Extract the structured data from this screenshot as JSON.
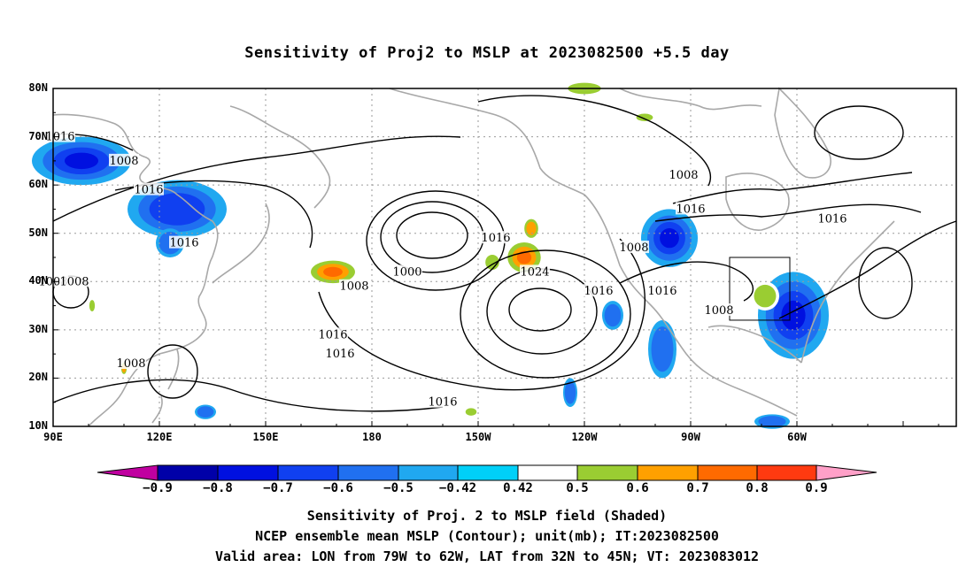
{
  "title": "Sensitivity of Proj2 to MSLP at 2023082500 +5.5 day",
  "map": {
    "lat_ticks": [
      "80N",
      "70N",
      "60N",
      "50N",
      "40N",
      "30N",
      "20N",
      "10N"
    ],
    "lon_ticks": [
      "90E",
      "120E",
      "150E",
      "180",
      "150W",
      "120W",
      "90W",
      "60W"
    ],
    "contour_labels": [
      {
        "text": "1008",
        "lon": 110,
        "lat": 65
      },
      {
        "text": "1016",
        "lon": 117,
        "lat": 59
      },
      {
        "text": "1016",
        "lon": 127,
        "lat": 48
      },
      {
        "text": "1008",
        "lon": 90,
        "lat": 40
      },
      {
        "text": "1008",
        "lon": 96,
        "lat": 40
      },
      {
        "text": "1016",
        "lon": 92,
        "lat": 70
      },
      {
        "text": "1008",
        "lon": 112,
        "lat": 23
      },
      {
        "text": "1000",
        "lon": 190,
        "lat": 42
      },
      {
        "text": "1008",
        "lon": 175,
        "lat": 39
      },
      {
        "text": "1016",
        "lon": 169,
        "lat": 29
      },
      {
        "text": "1016",
        "lon": 171,
        "lat": 25
      },
      {
        "text": "1024",
        "lon": 226,
        "lat": 42
      },
      {
        "text": "1016",
        "lon": 215,
        "lat": 49
      },
      {
        "text": "1016",
        "lon": 244,
        "lat": 38
      },
      {
        "text": "1016",
        "lon": 200,
        "lat": 15
      },
      {
        "text": "1008",
        "lon": 268,
        "lat": 62
      },
      {
        "text": "1016",
        "lon": 270,
        "lat": 55
      },
      {
        "text": "1008",
        "lon": 254,
        "lat": 47
      },
      {
        "text": "1016",
        "lon": 262,
        "lat": 38
      },
      {
        "text": "1008",
        "lon": 278,
        "lat": 34
      },
      {
        "text": "1016",
        "lon": 310,
        "lat": 53
      }
    ],
    "valid_box": {
      "lon_min": -79,
      "lon_max": -62,
      "lat_min": 32,
      "lat_max": 45
    },
    "positive_patches": [
      {
        "lon": 169,
        "lat": 42,
        "rx": 8,
        "ry": 3,
        "level": 0.7
      },
      {
        "lon": 223,
        "lat": 45,
        "rx": 6,
        "ry": 4,
        "level": 0.7
      },
      {
        "lon": 225,
        "lat": 51,
        "rx": 2.5,
        "ry": 2.5,
        "level": 0.6
      },
      {
        "lon": 214,
        "lat": 44,
        "rx": 2.5,
        "ry": 2,
        "level": 0.5
      },
      {
        "lon": 291,
        "lat": 37,
        "rx": 4,
        "ry": 3,
        "level": 0.5
      },
      {
        "lon": 240,
        "lat": 80,
        "rx": 6,
        "ry": 1.5,
        "level": 0.5
      },
      {
        "lon": 257,
        "lat": 74,
        "rx": 3,
        "ry": 1,
        "level": 0.5
      },
      {
        "lon": 110,
        "lat": 22,
        "rx": 1,
        "ry": 1.5,
        "level": 0.6
      },
      {
        "lon": 101,
        "lat": 35,
        "rx": 1,
        "ry": 1.5,
        "level": 0.5
      },
      {
        "lon": 208,
        "lat": 13,
        "rx": 2,
        "ry": 1,
        "level": 0.5
      }
    ],
    "negative_patches": [
      {
        "lon": 98,
        "lat": 65,
        "rx": 14,
        "ry": 5,
        "level": -0.7
      },
      {
        "lon": 125,
        "lat": 55,
        "rx": 14,
        "ry": 6,
        "level": -0.6
      },
      {
        "lon": 123,
        "lat": 48,
        "rx": 4,
        "ry": 3,
        "level": -0.5
      },
      {
        "lon": 264,
        "lat": 49,
        "rx": 8,
        "ry": 6,
        "level": -0.7
      },
      {
        "lon": 299,
        "lat": 33,
        "rx": 10,
        "ry": 9,
        "level": -0.7
      },
      {
        "lon": 262,
        "lat": 26,
        "rx": 4,
        "ry": 6,
        "level": -0.5
      },
      {
        "lon": 248,
        "lat": 33,
        "rx": 3,
        "ry": 3,
        "level": -0.5
      },
      {
        "lon": 236,
        "lat": 17,
        "rx": 2,
        "ry": 3,
        "level": -0.5
      },
      {
        "lon": 133,
        "lat": 13,
        "rx": 3,
        "ry": 1.5,
        "level": -0.5
      },
      {
        "lon": 293,
        "lat": 11,
        "rx": 5,
        "ry": 1.5,
        "level": -0.5
      }
    ]
  },
  "colorbar": {
    "labels": [
      "−0.9",
      "−0.8",
      "−0.7",
      "−0.6",
      "−0.5",
      "−0.42",
      "0.42",
      "0.5",
      "0.6",
      "0.7",
      "0.8",
      "0.9"
    ],
    "colors": [
      "#c000a0",
      "#0000a8",
      "#0010e0",
      "#1040f0",
      "#2070f0",
      "#20a8f0",
      "#00d0f8",
      "#ffffff",
      "#9acd32",
      "#ffa000",
      "#ff6a00",
      "#ff3a10",
      "#ff0000",
      "#ffa0c8"
    ]
  },
  "captions": {
    "line1": "Sensitivity of Proj. 2 to MSLP field (Shaded)",
    "line2": "NCEP ensemble mean MSLP (Contour); unit(mb); IT:2023082500",
    "line3": "Valid area: LON from 79W to 62W, LAT from 32N to 45N; VT: 2023083012"
  }
}
